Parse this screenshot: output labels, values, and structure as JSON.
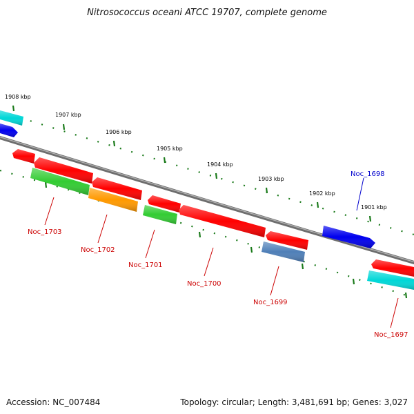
{
  "title": "Nitrosococcus oceani ATCC 19707, complete genome",
  "footer": {
    "accession": "Accession: NC_007484",
    "summary": "Topology: circular; Length: 3,481,691 bp; Genes: 3,027"
  },
  "scale_labels": [
    "1908 kbp",
    "1907 kbp",
    "1906 kbp",
    "1905 kbp",
    "1904 kbp",
    "1903 kbp",
    "1902 kbp",
    "1901 kbp"
  ],
  "gene_labels": [
    "Noc_1698",
    "Noc_1703",
    "Noc_1702",
    "Noc_1701",
    "Noc_1700",
    "Noc_1699",
    "Noc_1697"
  ],
  "colors": {
    "backbone": "#808080",
    "ticks": "#1a7a1a",
    "red": "#ff0000",
    "blue": "#0000ee",
    "cyan": "#00d7d7",
    "green": "#33cc33",
    "orange": "#ff9900",
    "steel": "#4f7fb8",
    "label_red": "#cc0000",
    "label_blue": "#0000cc"
  }
}
